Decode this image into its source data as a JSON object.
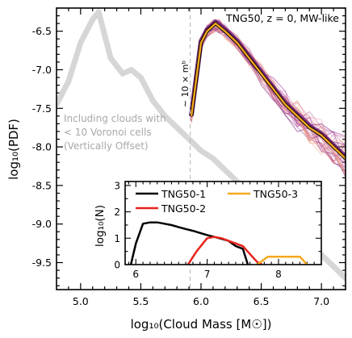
{
  "chart_data": [
    {
      "type": "line",
      "title": "",
      "xlabel": "log₁₀(Cloud Mass [M☉])",
      "ylabel": "log₁₀(PDF)",
      "xlim": [
        4.8,
        7.2
      ],
      "ylim": [
        -9.85,
        -6.2
      ],
      "xticks": [
        "5.0",
        "5.5",
        "6.0",
        "6.5",
        "7.0"
      ],
      "yticks": [
        "-6.5",
        "-7.0",
        "-7.5",
        "-8.0",
        "-8.5",
        "-9.0",
        "-9.5"
      ],
      "annotation_top": "TNG50, z = 0, MW-like",
      "vline": {
        "x": 5.91,
        "label": "∼ 10 × mᵇ"
      },
      "gray_label": [
        "Including clouds with",
        "< 10 Voronoi cells",
        "(Vertically Offset)"
      ],
      "series": [
        {
          "kind": "gray_offset",
          "color": "#d6d6d6",
          "points": [
            [
              4.8,
              -7.45
            ],
            [
              4.9,
              -7.15
            ],
            [
              5.0,
              -6.65
            ],
            [
              5.1,
              -6.35
            ],
            [
              5.15,
              -6.25
            ],
            [
              5.25,
              -6.85
            ],
            [
              5.35,
              -7.05
            ],
            [
              5.42,
              -7.0
            ],
            [
              5.5,
              -7.1
            ],
            [
              5.6,
              -7.4
            ],
            [
              5.7,
              -7.6
            ],
            [
              5.8,
              -7.75
            ],
            [
              5.9,
              -7.9
            ],
            [
              6.0,
              -8.05
            ],
            [
              6.1,
              -8.15
            ],
            [
              6.2,
              -8.3
            ],
            [
              6.3,
              -8.45
            ],
            [
              6.4,
              -8.55
            ],
            [
              6.5,
              -8.7
            ],
            [
              6.6,
              -8.8
            ],
            [
              6.7,
              -8.95
            ],
            [
              6.8,
              -9.1
            ],
            [
              6.9,
              -9.25
            ],
            [
              7.0,
              -9.4
            ],
            [
              7.1,
              -9.55
            ],
            [
              7.2,
              -9.7
            ]
          ]
        },
        {
          "kind": "median",
          "color": "#f5a81d",
          "points": [
            [
              5.92,
              -7.6
            ],
            [
              6.0,
              -6.65
            ],
            [
              6.05,
              -6.5
            ],
            [
              6.12,
              -6.4
            ],
            [
              6.2,
              -6.5
            ],
            [
              6.3,
              -6.65
            ],
            [
              6.4,
              -6.85
            ],
            [
              6.5,
              -7.05
            ],
            [
              6.6,
              -7.25
            ],
            [
              6.7,
              -7.45
            ],
            [
              6.8,
              -7.6
            ],
            [
              6.9,
              -7.75
            ],
            [
              7.0,
              -7.85
            ],
            [
              7.1,
              -8.0
            ],
            [
              7.2,
              -8.15
            ]
          ]
        }
      ],
      "galaxy_bundle": {
        "note": "many individual MW-like galaxies (pink to purple)",
        "colors": [
          "#7d1f7a",
          "#a4308c",
          "#c2568f",
          "#e0808f",
          "#f09a86",
          "#f5b08a",
          "#cfa0d8"
        ]
      }
    },
    {
      "type": "line",
      "title": "",
      "ylabel": "log₁₀(N)",
      "xlim": [
        5.85,
        8.6
      ],
      "ylim": [
        0,
        3.15
      ],
      "xticks": [
        "6",
        "7",
        "8"
      ],
      "yticks": [
        "0",
        "1",
        "2",
        "3"
      ],
      "legend_position": "top",
      "series": [
        {
          "name": "TNG50-1",
          "color": "#000000",
          "points": [
            [
              5.93,
              0
            ],
            [
              6.0,
              0.8
            ],
            [
              6.1,
              1.55
            ],
            [
              6.2,
              1.6
            ],
            [
              6.3,
              1.6
            ],
            [
              6.4,
              1.55
            ],
            [
              6.5,
              1.5
            ],
            [
              6.6,
              1.42
            ],
            [
              6.7,
              1.35
            ],
            [
              6.8,
              1.28
            ],
            [
              6.9,
              1.2
            ],
            [
              7.0,
              1.12
            ],
            [
              7.1,
              1.05
            ],
            [
              7.2,
              0.98
            ],
            [
              7.3,
              0.9
            ],
            [
              7.4,
              0.7
            ],
            [
              7.5,
              0.6
            ],
            [
              7.57,
              0
            ]
          ]
        },
        {
          "name": "TNG50-2",
          "color": "#e8221a",
          "points": [
            [
              6.73,
              0
            ],
            [
              6.85,
              0.5
            ],
            [
              7.0,
              1.0
            ],
            [
              7.1,
              1.05
            ],
            [
              7.2,
              1.0
            ],
            [
              7.3,
              0.9
            ],
            [
              7.4,
              0.8
            ],
            [
              7.5,
              0.7
            ],
            [
              7.6,
              0.4
            ],
            [
              7.7,
              0.1
            ],
            [
              7.77,
              0
            ]
          ]
        },
        {
          "name": "TNG50-3",
          "color": "#f5a81d",
          "points": [
            [
              7.7,
              0
            ],
            [
              7.85,
              0.3
            ],
            [
              8.0,
              0.3
            ],
            [
              8.15,
              0.3
            ],
            [
              8.3,
              0.3
            ],
            [
              8.4,
              0
            ]
          ]
        }
      ]
    }
  ]
}
